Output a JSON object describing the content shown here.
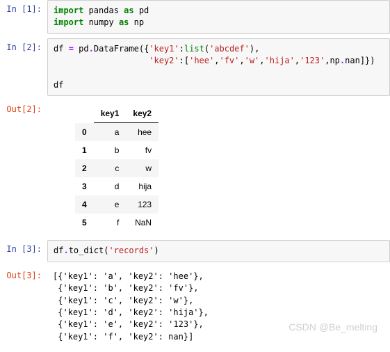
{
  "cells": {
    "c1": {
      "in_prompt": "In  [1]:",
      "code_tokens": [
        {
          "t": "import",
          "c": "kw"
        },
        {
          "t": " pandas ",
          "c": ""
        },
        {
          "t": "as",
          "c": "kw"
        },
        {
          "t": " pd\n",
          "c": ""
        },
        {
          "t": "import",
          "c": "kw"
        },
        {
          "t": " numpy ",
          "c": ""
        },
        {
          "t": "as",
          "c": "kw"
        },
        {
          "t": " np",
          "c": ""
        }
      ]
    },
    "c2": {
      "in_prompt": "In  [2]:",
      "out_prompt": "Out[2]:",
      "code_tokens": [
        {
          "t": "df ",
          "c": ""
        },
        {
          "t": "=",
          "c": "op"
        },
        {
          "t": " pd",
          "c": ""
        },
        {
          "t": ".",
          "c": "op"
        },
        {
          "t": "DataFrame({",
          "c": ""
        },
        {
          "t": "'key1'",
          "c": "str"
        },
        {
          "t": ":",
          "c": ""
        },
        {
          "t": "list",
          "c": "builtin"
        },
        {
          "t": "(",
          "c": ""
        },
        {
          "t": "'abcdef'",
          "c": "str"
        },
        {
          "t": "),\n",
          "c": ""
        },
        {
          "t": "                   ",
          "c": ""
        },
        {
          "t": "'key2'",
          "c": "str"
        },
        {
          "t": ":[",
          "c": ""
        },
        {
          "t": "'hee'",
          "c": "str"
        },
        {
          "t": ",",
          "c": ""
        },
        {
          "t": "'fv'",
          "c": "str"
        },
        {
          "t": ",",
          "c": ""
        },
        {
          "t": "'w'",
          "c": "str"
        },
        {
          "t": ",",
          "c": ""
        },
        {
          "t": "'hija'",
          "c": "str"
        },
        {
          "t": ",",
          "c": ""
        },
        {
          "t": "'123'",
          "c": "str"
        },
        {
          "t": ",np",
          "c": ""
        },
        {
          "t": ".",
          "c": "op"
        },
        {
          "t": "nan]})\n\n",
          "c": ""
        },
        {
          "t": "df",
          "c": ""
        }
      ],
      "table": {
        "columns": [
          "key1",
          "key2"
        ],
        "index": [
          "0",
          "1",
          "2",
          "3",
          "4",
          "5"
        ],
        "rows": [
          [
            "a",
            "hee"
          ],
          [
            "b",
            "fv"
          ],
          [
            "c",
            "w"
          ],
          [
            "d",
            "hija"
          ],
          [
            "e",
            "123"
          ],
          [
            "f",
            "NaN"
          ]
        ]
      }
    },
    "c3": {
      "in_prompt": "In  [3]:",
      "out_prompt": "Out[3]:",
      "code_tokens": [
        {
          "t": "df",
          "c": ""
        },
        {
          "t": ".",
          "c": "op"
        },
        {
          "t": "to_dict(",
          "c": ""
        },
        {
          "t": "'records'",
          "c": "str"
        },
        {
          "t": ")",
          "c": ""
        }
      ],
      "output_lines": [
        "[{'key1': 'a', 'key2': 'hee'},",
        " {'key1': 'b', 'key2': 'fv'},",
        " {'key1': 'c', 'key2': 'w'},",
        " {'key1': 'd', 'key2': 'hija'},",
        " {'key1': 'e', 'key2': '123'},",
        " {'key1': 'f', 'key2': nan}]"
      ]
    }
  },
  "watermark": "CSDN @Be_melting",
  "colors": {
    "in_prompt": "#303f9f",
    "out_prompt": "#d84315",
    "code_bg": "#f7f7f7",
    "code_border": "#cfcfcf",
    "kw": "#008000",
    "str": "#ba2121",
    "op": "#aa22ff",
    "row_odd": "#f5f5f5",
    "watermark": "#d0d0d0"
  }
}
